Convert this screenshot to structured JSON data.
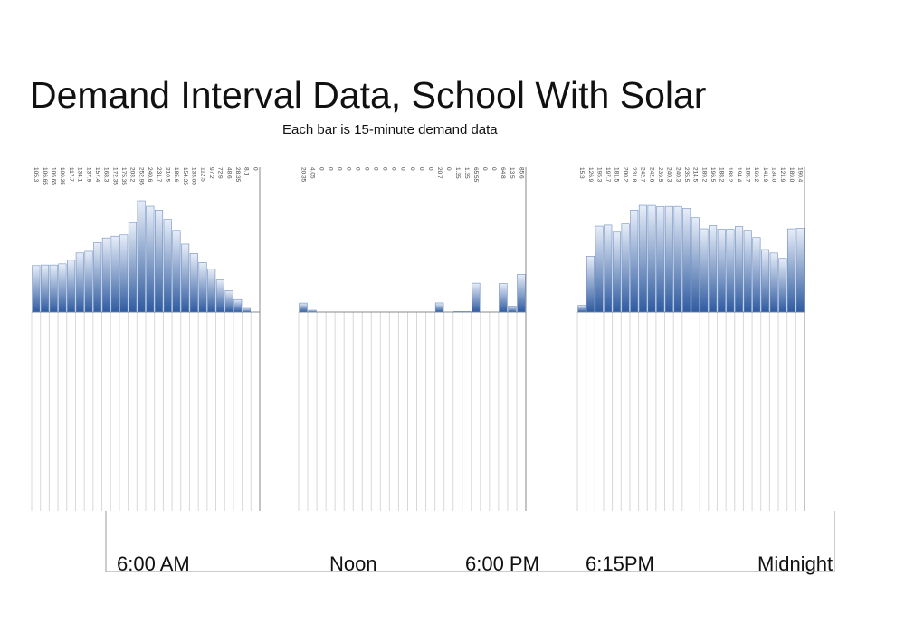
{
  "title": "Demand Interval Data, School With Solar",
  "subtitle": "Each bar is 15-minute demand data",
  "time_labels": {
    "t1": "6:00 AM",
    "t2": "Noon",
    "t3": "6:00 PM",
    "t4": "6:15PM",
    "t5": "Midnight"
  },
  "colors": {
    "bar_top": "#e8eef8",
    "bar_bottom": "#2f5ba0",
    "bar_stroke": "#6f8fc3",
    "grid": "#d8d8d8",
    "axis": "#888888",
    "value_text": "#444444"
  },
  "chart_data": [
    {
      "type": "bar",
      "name": "",
      "values": [
        105.3,
        106.65,
        106.65,
        109.35,
        117.7,
        134.1,
        137.9,
        157.4,
        168.3,
        172.35,
        175.35,
        203.2,
        252.95,
        240.6,
        231.7,
        210.5,
        185.6,
        154.35,
        133.05,
        112.5,
        97.2,
        72.9,
        48.6,
        28.35,
        8.1,
        0
      ],
      "labels": [
        "105.3",
        "106.65",
        "106.65",
        "109.35",
        "117.7",
        "134.1",
        "137.9",
        "157.4",
        "168.3",
        "172.35",
        "175.35",
        "203.2",
        "252.95",
        "240.6",
        "231.7",
        "210.5",
        "185.6",
        "154.35",
        "133.05",
        "112.5",
        "97.2",
        "72.9",
        "48.6",
        "28.35",
        "8.1",
        "0"
      ],
      "ylim": [
        0,
        253
      ]
    },
    {
      "type": "bar",
      "name": "",
      "values": [
        20.35,
        4.05,
        0,
        0,
        0,
        0,
        0,
        0,
        0,
        0,
        0,
        0,
        0,
        0,
        0,
        20.7,
        0,
        1.35,
        1.35,
        65.55,
        0,
        0,
        64.8,
        13.5,
        85.6
      ],
      "labels": [
        "20.35",
        "4.05",
        "0",
        "0",
        "0",
        "0",
        "0",
        "0",
        "0",
        "0",
        "0",
        "0",
        "0",
        "0",
        "0",
        "20.7",
        "0",
        "1.35",
        "1.35",
        "65.55",
        "0",
        "0",
        "64.8",
        "13.5",
        "85.6"
      ],
      "ylim": [
        0,
        253
      ]
    },
    {
      "type": "bar",
      "name": "",
      "values": [
        15.3,
        126.9,
        195.3,
        197.7,
        181.5,
        200.2,
        231.8,
        242.7,
        242.6,
        239.5,
        240.3,
        240.3,
        235.5,
        214.5,
        189.2,
        196.5,
        188.2,
        188.2,
        194.4,
        185.7,
        169.2,
        141.9,
        134.0,
        121.9,
        189.0,
        190.4
      ],
      "labels": [
        "15.3",
        "126.9",
        "195.3",
        "197.7",
        "181.5",
        "200.2",
        "231.8",
        "242.7",
        "242.6",
        "239.5",
        "240.3",
        "240.3",
        "235.5",
        "214.5",
        "189.2",
        "196.5",
        "188.2",
        "188.2",
        "194.4",
        "185.7",
        "169.2",
        "141.9",
        "134.0",
        "121.9",
        "189.0",
        "190.4"
      ],
      "ylim": [
        0,
        253
      ]
    }
  ]
}
